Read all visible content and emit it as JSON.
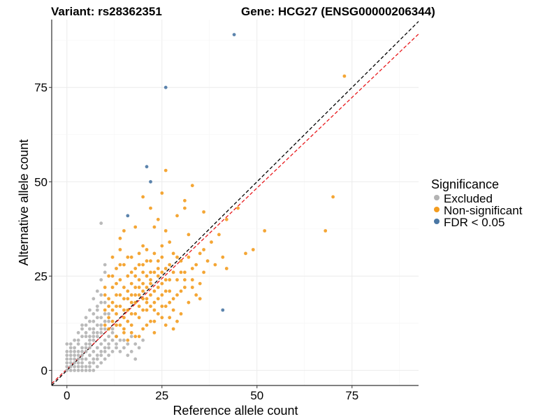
{
  "chart_data": {
    "type": "scatter",
    "title_left": "Variant: rs28362351",
    "title_right": "Gene: HCG27 (ENSG00000206344)",
    "xlabel": "Reference allele count",
    "ylabel": "Alternative allele count",
    "xlim": [
      -4,
      92.5
    ],
    "ylim": [
      -4,
      93
    ],
    "x_ticks": [
      0,
      25,
      50,
      75
    ],
    "y_ticks": [
      0,
      25,
      50,
      75
    ],
    "grid": true,
    "legend": {
      "title": "Significance",
      "position": "right",
      "items": [
        {
          "label": "Excluded",
          "color": "#b3b3b3"
        },
        {
          "label": "Non-significant",
          "color": "#f39c1f"
        },
        {
          "label": "FDR < 0.05",
          "color": "#4a77a4"
        }
      ]
    },
    "reference_lines": [
      {
        "name": "identity",
        "slope": 1,
        "intercept": 0,
        "color": "#000000",
        "style": "dashed"
      },
      {
        "name": "fit",
        "slope": 0.96,
        "intercept": 0.35,
        "color": "#e8191c",
        "style": "dashed"
      }
    ],
    "series": [
      {
        "name": "FDR < 0.05",
        "color": "#4a77a4",
        "points": [
          [
            44,
            89
          ],
          [
            26,
            75
          ],
          [
            21,
            54
          ],
          [
            22,
            50
          ],
          [
            16,
            41
          ],
          [
            41,
            16
          ]
        ]
      },
      {
        "name": "Non-significant",
        "color": "#f39c1f",
        "points": [
          [
            73,
            78
          ],
          [
            70,
            46
          ],
          [
            68,
            37
          ],
          [
            52,
            37
          ],
          [
            49,
            32
          ],
          [
            47,
            31
          ],
          [
            45,
            43
          ],
          [
            42,
            40
          ],
          [
            26,
            53
          ],
          [
            25,
            47
          ],
          [
            20,
            46
          ],
          [
            33,
            49
          ],
          [
            31,
            45
          ],
          [
            31,
            43
          ],
          [
            36,
            42
          ],
          [
            22,
            43
          ],
          [
            24,
            40
          ],
          [
            29,
            41
          ],
          [
            23,
            38
          ],
          [
            18,
            38
          ],
          [
            14,
            35
          ],
          [
            15,
            37
          ],
          [
            26,
            37
          ],
          [
            27,
            34
          ],
          [
            32,
            36
          ],
          [
            20,
            33
          ],
          [
            38,
            34
          ],
          [
            40,
            36
          ],
          [
            41,
            30
          ],
          [
            42,
            27
          ],
          [
            39,
            28
          ],
          [
            36,
            26
          ],
          [
            37,
            29
          ],
          [
            35,
            23
          ],
          [
            34,
            20
          ],
          [
            33,
            27
          ],
          [
            29,
            30
          ],
          [
            28,
            31
          ],
          [
            30,
            26
          ],
          [
            31,
            22
          ],
          [
            32,
            18
          ],
          [
            30,
            15
          ],
          [
            28,
            19
          ],
          [
            27,
            24
          ],
          [
            26,
            27
          ],
          [
            25,
            30
          ],
          [
            24,
            22
          ],
          [
            23,
            26
          ],
          [
            22,
            29
          ],
          [
            21,
            32
          ],
          [
            20,
            28
          ],
          [
            19,
            31
          ],
          [
            18,
            27
          ],
          [
            17,
            30
          ],
          [
            16,
            25
          ],
          [
            15,
            28
          ],
          [
            14,
            32
          ],
          [
            13,
            27
          ],
          [
            12,
            30
          ],
          [
            11,
            25
          ],
          [
            10,
            22
          ],
          [
            12,
            18
          ],
          [
            13,
            15
          ],
          [
            14,
            12
          ],
          [
            15,
            10
          ],
          [
            16,
            8
          ],
          [
            17,
            12
          ],
          [
            18,
            9
          ],
          [
            19,
            14
          ],
          [
            20,
            11
          ],
          [
            21,
            16
          ],
          [
            22,
            13
          ],
          [
            23,
            18
          ],
          [
            24,
            15
          ],
          [
            25,
            20
          ],
          [
            26,
            17
          ],
          [
            27,
            21
          ],
          [
            28,
            16
          ],
          [
            29,
            13
          ],
          [
            30,
            21
          ],
          [
            11,
            14
          ],
          [
            12,
            22
          ],
          [
            13,
            20
          ],
          [
            14,
            24
          ],
          [
            15,
            19
          ],
          [
            16,
            21
          ],
          [
            17,
            23
          ],
          [
            18,
            20
          ],
          [
            19,
            24
          ],
          [
            20,
            19
          ],
          [
            21,
            22
          ],
          [
            22,
            20
          ],
          [
            23,
            21
          ],
          [
            24,
            25
          ],
          [
            25,
            23
          ],
          [
            26,
            12
          ],
          [
            27,
            14
          ],
          [
            28,
            11
          ],
          [
            15,
            14
          ],
          [
            16,
            16
          ],
          [
            17,
            18
          ],
          [
            18,
            15
          ],
          [
            19,
            17
          ],
          [
            20,
            16
          ],
          [
            21,
            19
          ],
          [
            22,
            17
          ],
          [
            23,
            13
          ],
          [
            10,
            16
          ],
          [
            11,
            19
          ],
          [
            13,
            17
          ],
          [
            14,
            20
          ],
          [
            16,
            13
          ],
          [
            17,
            15
          ],
          [
            18,
            22
          ],
          [
            19,
            20
          ],
          [
            20,
            23
          ],
          [
            21,
            25
          ],
          [
            22,
            24
          ],
          [
            24,
            19
          ],
          [
            25,
            17
          ],
          [
            26,
            21
          ],
          [
            12,
            13
          ],
          [
            13,
            23
          ],
          [
            15,
            22
          ],
          [
            17,
            26
          ],
          [
            19,
            28
          ],
          [
            21,
            29
          ],
          [
            23,
            31
          ],
          [
            25,
            33
          ],
          [
            27,
            28
          ],
          [
            29,
            24
          ],
          [
            31,
            26
          ],
          [
            33,
            24
          ],
          [
            35,
            31
          ],
          [
            10,
            12
          ],
          [
            11,
            11
          ],
          [
            12,
            16
          ],
          [
            14,
            17
          ],
          [
            16,
            19
          ],
          [
            18,
            18
          ],
          [
            20,
            21
          ],
          [
            22,
            23
          ],
          [
            24,
            27
          ],
          [
            26,
            24
          ],
          [
            28,
            26
          ],
          [
            30,
            29
          ],
          [
            32,
            30
          ],
          [
            34,
            28
          ],
          [
            36,
            32
          ],
          [
            10,
            20
          ],
          [
            12,
            25
          ],
          [
            14,
            28
          ],
          [
            16,
            30
          ],
          [
            18,
            25
          ],
          [
            20,
            26
          ],
          [
            22,
            26
          ],
          [
            24,
            29
          ],
          [
            19,
            9
          ],
          [
            21,
            12
          ],
          [
            23,
            10
          ],
          [
            25,
            14
          ],
          [
            13,
            9
          ],
          [
            15,
            11
          ],
          [
            17,
            10
          ],
          [
            11,
            17
          ],
          [
            13,
            12
          ],
          [
            15,
            16
          ],
          [
            17,
            20
          ],
          [
            19,
            22
          ],
          [
            21,
            18
          ],
          [
            23,
            16
          ],
          [
            25,
            26
          ],
          [
            27,
            18
          ],
          [
            29,
            20
          ],
          [
            31,
            24
          ],
          [
            33,
            22
          ],
          [
            35,
            19
          ]
        ]
      },
      {
        "name": "Excluded",
        "color": "#b3b3b3",
        "points": [
          [
            0,
            0
          ],
          [
            0,
            1
          ],
          [
            0,
            2
          ],
          [
            0,
            3
          ],
          [
            0,
            4
          ],
          [
            0,
            5
          ],
          [
            1,
            0
          ],
          [
            1,
            1
          ],
          [
            1,
            2
          ],
          [
            1,
            3
          ],
          [
            1,
            5
          ],
          [
            1,
            7
          ],
          [
            2,
            0
          ],
          [
            2,
            1
          ],
          [
            2,
            2
          ],
          [
            2,
            4
          ],
          [
            2,
            6
          ],
          [
            2,
            8
          ],
          [
            3,
            1
          ],
          [
            3,
            2
          ],
          [
            3,
            3
          ],
          [
            3,
            5
          ],
          [
            3,
            7
          ],
          [
            3,
            10
          ],
          [
            4,
            0
          ],
          [
            4,
            2
          ],
          [
            4,
            3
          ],
          [
            4,
            4
          ],
          [
            4,
            6
          ],
          [
            4,
            9
          ],
          [
            4,
            12
          ],
          [
            5,
            1
          ],
          [
            5,
            3
          ],
          [
            5,
            5
          ],
          [
            5,
            7
          ],
          [
            5,
            10
          ],
          [
            5,
            14
          ],
          [
            6,
            2
          ],
          [
            6,
            4
          ],
          [
            6,
            6
          ],
          [
            6,
            9
          ],
          [
            6,
            13
          ],
          [
            6,
            16
          ],
          [
            7,
            3
          ],
          [
            7,
            5
          ],
          [
            7,
            8
          ],
          [
            7,
            11
          ],
          [
            7,
            15
          ],
          [
            7,
            19
          ],
          [
            8,
            4
          ],
          [
            8,
            6
          ],
          [
            8,
            9
          ],
          [
            8,
            12
          ],
          [
            8,
            17
          ],
          [
            8,
            21
          ],
          [
            9,
            5
          ],
          [
            9,
            7
          ],
          [
            9,
            10
          ],
          [
            9,
            14
          ],
          [
            9,
            18
          ],
          [
            9,
            24
          ],
          [
            9,
            39
          ],
          [
            10,
            6
          ],
          [
            10,
            8
          ],
          [
            10,
            11
          ],
          [
            10,
            15
          ],
          [
            10,
            26
          ],
          [
            10,
            28
          ],
          [
            11,
            7
          ],
          [
            11,
            9
          ],
          [
            11,
            13
          ],
          [
            12,
            8
          ],
          [
            12,
            10
          ],
          [
            13,
            7
          ],
          [
            13,
            6
          ],
          [
            14,
            5
          ],
          [
            15,
            6
          ],
          [
            16,
            4
          ],
          [
            17,
            5
          ],
          [
            18,
            3
          ],
          [
            19,
            6
          ],
          [
            20,
            8
          ],
          [
            14,
            8
          ],
          [
            12,
            5
          ],
          [
            11,
            4
          ],
          [
            10,
            3
          ],
          [
            9,
            2
          ],
          [
            8,
            1
          ],
          [
            7,
            0
          ],
          [
            6,
            0
          ],
          [
            5,
            0
          ],
          [
            3,
            0
          ],
          [
            2,
            3
          ],
          [
            1,
            4
          ],
          [
            4,
            1
          ],
          [
            6,
            1
          ],
          [
            7,
            2
          ],
          [
            8,
            3
          ],
          [
            9,
            4
          ],
          [
            10,
            5
          ],
          [
            11,
            6
          ],
          [
            5,
            12
          ],
          [
            6,
            11
          ],
          [
            7,
            13
          ],
          [
            8,
            16
          ],
          [
            9,
            20
          ],
          [
            10,
            18
          ],
          [
            6,
            8
          ],
          [
            7,
            10
          ],
          [
            8,
            14
          ],
          [
            9,
            12
          ],
          [
            3,
            8
          ],
          [
            4,
            11
          ],
          [
            5,
            9
          ],
          [
            2,
            5
          ],
          [
            1,
            6
          ],
          [
            0,
            7
          ],
          [
            3,
            4
          ],
          [
            4,
            5
          ],
          [
            5,
            6
          ],
          [
            6,
            7
          ],
          [
            7,
            9
          ],
          [
            8,
            10
          ],
          [
            9,
            11
          ],
          [
            10,
            13
          ],
          [
            11,
            15
          ],
          [
            12,
            11
          ],
          [
            13,
            9
          ],
          [
            15,
            8
          ],
          [
            16,
            7
          ],
          [
            17,
            9
          ],
          [
            18,
            7
          ]
        ]
      }
    ]
  }
}
